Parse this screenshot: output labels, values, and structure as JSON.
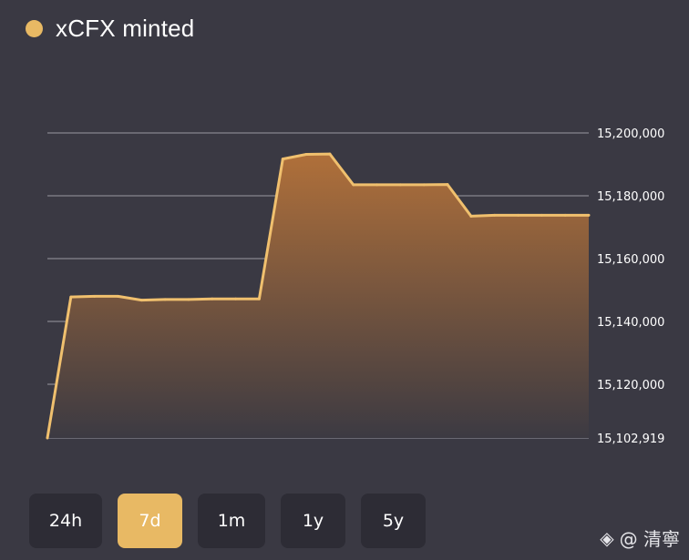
{
  "header": {
    "title": "xCFX minted",
    "dot_color": "#e8b964"
  },
  "range_buttons": [
    {
      "label": "24h",
      "active": false
    },
    {
      "label": "7d",
      "active": true
    },
    {
      "label": "1m",
      "active": false
    },
    {
      "label": "1y",
      "active": false
    },
    {
      "label": "5y",
      "active": false
    }
  ],
  "watermark": {
    "icon": "binance-logo-icon",
    "text": "@ 清寧"
  },
  "colors": {
    "background": "#3a3943",
    "line": "#f0c06e",
    "area_top": "#b0703a",
    "area_bottom": "#3c3a42",
    "grid": "#9a99a0"
  },
  "chart_data": {
    "type": "area",
    "title": "xCFX minted",
    "xlabel": "",
    "ylabel": "",
    "grid": true,
    "legend": "none",
    "ylim": [
      15102919,
      15200000
    ],
    "yticks": [
      15200000,
      15180000,
      15160000,
      15140000,
      15120000,
      15102919
    ],
    "ytick_labels": [
      "15,200,000",
      "15,180,000",
      "15,160,000",
      "15,140,000",
      "15,120,000",
      "15,102,919"
    ],
    "series": [
      {
        "values": [
          15102919,
          15147800,
          15148000,
          15148000,
          15146800,
          15147000,
          15147000,
          15147200,
          15147200,
          15147200,
          15191700,
          15193200,
          15193300,
          15183500,
          15183500,
          15183500,
          15183500,
          15183600,
          15173500,
          15173800,
          15173800,
          15173800,
          15173800,
          15173800
        ]
      }
    ]
  }
}
